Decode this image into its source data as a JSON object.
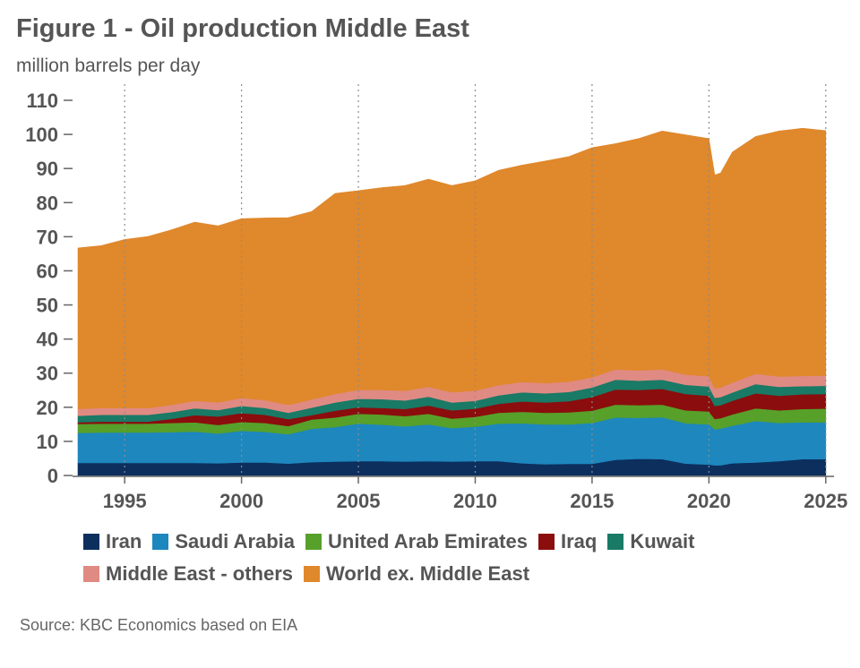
{
  "title": "Figure 1 - Oil production Middle East",
  "subtitle": "million barrels per day",
  "source": "Source: KBC Economics based on EIA",
  "chart_data": {
    "type": "area",
    "stacked": true,
    "x": [
      1993,
      1994,
      1995,
      1996,
      1997,
      1998,
      1999,
      2000,
      2001,
      2002,
      2003,
      2004,
      2005,
      2006,
      2007,
      2008,
      2009,
      2010,
      2011,
      2012,
      2013,
      2014,
      2015,
      2016,
      2017,
      2018,
      2019,
      2020,
      2020.25,
      2020.5,
      2021,
      2022,
      2023,
      2024,
      2025
    ],
    "xticks": [
      "1995",
      "2000",
      "2005",
      "2010",
      "2015",
      "2020",
      "2025"
    ],
    "xtick_values": [
      1995,
      2000,
      2005,
      2010,
      2015,
      2020,
      2025
    ],
    "ylim": [
      0,
      110
    ],
    "yticks": [
      "0",
      "10",
      "20",
      "30",
      "40",
      "50",
      "60",
      "70",
      "80",
      "90",
      "100",
      "110"
    ],
    "ytick_values": [
      0,
      10,
      20,
      30,
      40,
      50,
      60,
      70,
      80,
      90,
      100,
      110
    ],
    "grid": "vertical dotted lines at tick years",
    "legend_position": "bottom",
    "series": [
      {
        "name": "Iran",
        "color": "#0c2f5e",
        "values": [
          3.7,
          3.7,
          3.7,
          3.7,
          3.7,
          3.7,
          3.6,
          3.8,
          3.8,
          3.5,
          3.9,
          4.1,
          4.2,
          4.2,
          4.1,
          4.2,
          4.1,
          4.2,
          4.2,
          3.6,
          3.3,
          3.4,
          3.4,
          4.6,
          4.9,
          4.8,
          3.5,
          3.2,
          3.0,
          3.0,
          3.6,
          3.8,
          4.2,
          4.8,
          4.8
        ]
      },
      {
        "name": "Saudi Arabia",
        "color": "#1e87bd",
        "values": [
          8.8,
          8.9,
          8.9,
          8.9,
          9.0,
          9.2,
          8.7,
          9.3,
          9.0,
          8.6,
          9.8,
          10.1,
          11.0,
          10.7,
          10.3,
          10.8,
          9.8,
          10.1,
          11.0,
          11.7,
          11.7,
          11.6,
          12.0,
          12.4,
          12.0,
          12.3,
          11.8,
          11.8,
          10.5,
          10.8,
          11.0,
          12.2,
          11.2,
          10.8,
          10.8
        ]
      },
      {
        "name": "United Arab Emirates",
        "color": "#57a02a",
        "values": [
          2.6,
          2.6,
          2.6,
          2.6,
          2.7,
          2.7,
          2.5,
          2.6,
          2.6,
          2.4,
          2.7,
          2.8,
          2.9,
          3.0,
          3.0,
          3.1,
          2.8,
          2.9,
          3.2,
          3.4,
          3.4,
          3.5,
          3.6,
          3.8,
          3.7,
          3.7,
          3.8,
          3.8,
          3.1,
          3.0,
          3.3,
          3.7,
          3.7,
          3.9,
          4.0
        ]
      },
      {
        "name": "Iraq",
        "color": "#8b0d0d",
        "values": [
          0.5,
          0.6,
          0.6,
          0.6,
          1.2,
          2.1,
          2.5,
          2.6,
          2.4,
          2.0,
          1.3,
          2.0,
          1.9,
          1.9,
          2.1,
          2.4,
          2.4,
          2.4,
          2.6,
          3.0,
          3.0,
          3.3,
          4.0,
          4.4,
          4.5,
          4.6,
          4.8,
          4.6,
          3.8,
          3.8,
          4.0,
          4.4,
          4.3,
          4.3,
          4.3
        ]
      },
      {
        "name": "Kuwait",
        "color": "#197a66",
        "values": [
          1.9,
          2.0,
          2.0,
          2.0,
          2.0,
          2.0,
          1.9,
          2.1,
          2.0,
          1.9,
          2.2,
          2.4,
          2.5,
          2.6,
          2.5,
          2.6,
          2.3,
          2.3,
          2.5,
          2.7,
          2.7,
          2.7,
          2.8,
          2.9,
          2.7,
          2.7,
          2.7,
          2.7,
          2.4,
          2.4,
          2.4,
          2.7,
          2.6,
          2.4,
          2.4
        ]
      },
      {
        "name": "Middle East - others",
        "color": "#e08a84",
        "values": [
          2.0,
          2.0,
          2.0,
          2.0,
          2.1,
          2.2,
          2.2,
          2.3,
          2.3,
          2.3,
          2.4,
          2.5,
          2.6,
          2.7,
          2.8,
          2.9,
          3.0,
          3.0,
          3.0,
          3.0,
          3.0,
          3.0,
          3.0,
          3.0,
          3.0,
          3.0,
          3.0,
          3.0,
          2.8,
          2.8,
          2.9,
          3.0,
          3.0,
          3.0,
          3.0
        ]
      },
      {
        "name": "World ex. Middle East",
        "color": "#e0882c",
        "values": [
          47.2,
          47.6,
          49.4,
          50.3,
          51.3,
          52.4,
          51.8,
          52.6,
          53.4,
          54.9,
          55.1,
          58.8,
          58.4,
          59.3,
          60.2,
          60.9,
          60.6,
          61.5,
          63.0,
          63.6,
          65.1,
          66.0,
          67.3,
          66.2,
          68.0,
          69.9,
          70.3,
          69.7,
          62.5,
          62.9,
          67.6,
          69.6,
          72.0,
          72.6,
          71.8
        ]
      }
    ]
  }
}
